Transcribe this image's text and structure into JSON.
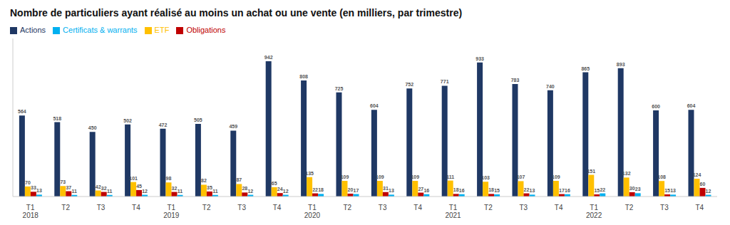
{
  "chart_data": {
    "type": "bar",
    "title": "Nombre de particuliers ayant réalisé au moins un achat ou une vente (en milliers, par trimestre)",
    "categories": [
      "T1\n2018",
      "T2",
      "T3",
      "T4",
      "T1\n2019",
      "T2",
      "T3",
      "T4",
      "T1\n2020",
      "T2",
      "T3",
      "T4",
      "T1\n2021",
      "T2",
      "T3",
      "T4",
      "T1\n2022",
      "T2",
      "T3",
      "T4"
    ],
    "series": [
      {
        "name": "Actions",
        "color": "#1F3864",
        "values": [
          564,
          518,
          450,
          502,
          472,
          505,
          459,
          942,
          808,
          725,
          604,
          752,
          771,
          933,
          783,
          740,
          865,
          893,
          600,
          604
        ]
      },
      {
        "name": "ETF",
        "color": "#FFC000",
        "values": [
          70,
          73,
          42,
          101,
          98,
          82,
          87,
          65,
          135,
          109,
          109,
          109,
          111,
          103,
          107,
          109,
          151,
          132,
          108,
          124
        ]
      },
      {
        "name": "Obligations",
        "color": "#C00000",
        "values": [
          33,
          37,
          32,
          45,
          32,
          35,
          28,
          24,
          22,
          20,
          31,
          27,
          18,
          18,
          22,
          17,
          15,
          30,
          15,
          60
        ]
      },
      {
        "name": "Certificats & warrants",
        "color": "#00B0F0",
        "values": [
          13,
          11,
          11,
          12,
          11,
          11,
          12,
          12,
          18,
          17,
          13,
          16,
          16,
          15,
          13,
          16,
          22,
          23,
          13,
          12
        ]
      }
    ],
    "ylim": [
      0,
      1100
    ],
    "grid": false,
    "legend": "upper left",
    "data_labels": true,
    "tick_labels": "x"
  }
}
